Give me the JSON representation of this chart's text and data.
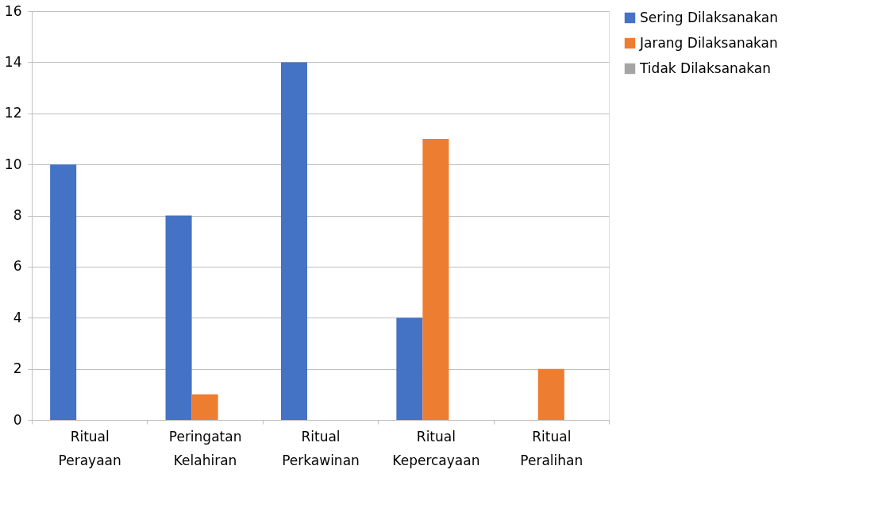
{
  "chart_data": {
    "type": "bar",
    "categories": [
      "Ritual Perayaan",
      "Peringatan Kelahiran",
      "Ritual Perkawinan",
      "Ritual Kepercayaan",
      "Ritual Peralihan"
    ],
    "series": [
      {
        "name": "Sering Dilaksanakan",
        "color": "#4472c4",
        "values": [
          10,
          8,
          14,
          4,
          0
        ]
      },
      {
        "name": "Jarang Dilaksanakan",
        "color": "#ed7d31",
        "values": [
          0,
          1,
          0,
          11,
          2
        ]
      },
      {
        "name": "Tidak Dilaksanakan",
        "color": "#a5a5a5",
        "values": [
          0,
          0,
          0,
          0,
          0
        ]
      }
    ],
    "ylim": [
      0,
      16
    ],
    "yticks": [
      0,
      2,
      4,
      6,
      8,
      10,
      12,
      14,
      16
    ],
    "grid": "y",
    "legend": "right"
  }
}
